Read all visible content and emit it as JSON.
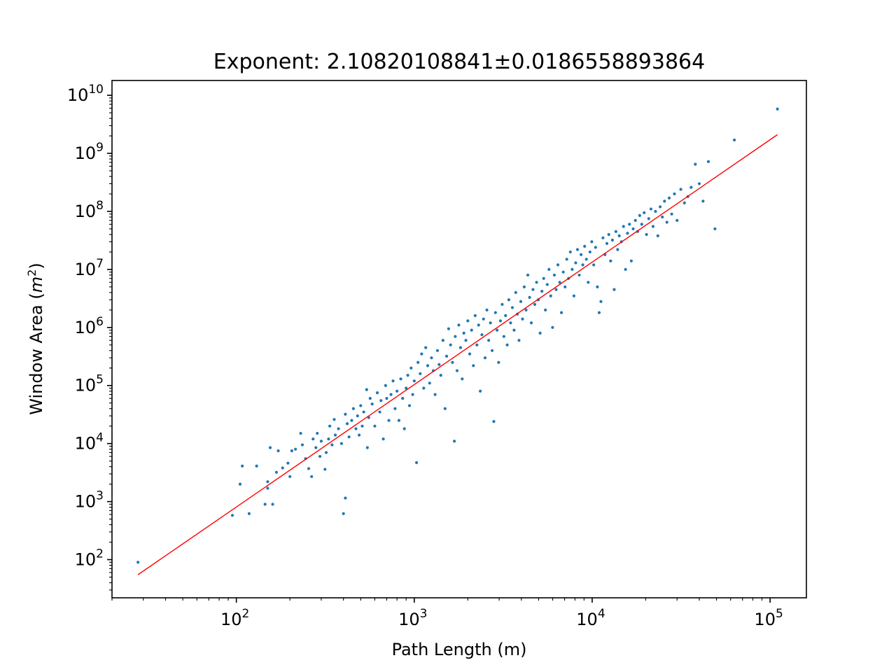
{
  "chart_data": {
    "type": "scatter",
    "title": "Exponent: 2.10820108841±0.0186558893864",
    "xlabel": "Path Length (m)",
    "ylabel_text": "Window Area (",
    "ylabel_math": "m",
    "ylabel_sup": "2",
    "ylabel_close": ")",
    "xscale": "log",
    "yscale": "log",
    "xlim": [
      20,
      160000
    ],
    "ylim": [
      22,
      18000000000
    ],
    "grid": false,
    "legend": "none",
    "xticks": [
      {
        "value": 100,
        "base": "10",
        "exp": "2"
      },
      {
        "value": 1000,
        "base": "10",
        "exp": "3"
      },
      {
        "value": 10000,
        "base": "10",
        "exp": "4"
      },
      {
        "value": 100000,
        "base": "10",
        "exp": "5"
      }
    ],
    "yticks": [
      {
        "value": 100,
        "base": "10",
        "exp": "2"
      },
      {
        "value": 1000,
        "base": "10",
        "exp": "3"
      },
      {
        "value": 10000,
        "base": "10",
        "exp": "4"
      },
      {
        "value": 100000,
        "base": "10",
        "exp": "5"
      },
      {
        "value": 1000000,
        "base": "10",
        "exp": "6"
      },
      {
        "value": 10000000,
        "base": "10",
        "exp": "7"
      },
      {
        "value": 100000000,
        "base": "10",
        "exp": "8"
      },
      {
        "value": 1000000000,
        "base": "10",
        "exp": "9"
      },
      {
        "value": 10000000000,
        "base": "10",
        "exp": "10"
      }
    ],
    "point_color": "#1f77b4",
    "fit_color": "#ff0000",
    "fit_line": {
      "exponent": 2.10820108841,
      "x": [
        28,
        110000
      ],
      "y": [
        55,
        2100000000
      ]
    },
    "points": [
      [
        28,
        90
      ],
      [
        95,
        580
      ],
      [
        105,
        2000
      ],
      [
        108,
        4100
      ],
      [
        118,
        620
      ],
      [
        130,
        4100
      ],
      [
        145,
        900
      ],
      [
        150,
        1700
      ],
      [
        150,
        2200
      ],
      [
        155,
        8500
      ],
      [
        160,
        900
      ],
      [
        168,
        3200
      ],
      [
        172,
        7500
      ],
      [
        182,
        3800
      ],
      [
        195,
        4600
      ],
      [
        200,
        2700
      ],
      [
        205,
        7500
      ],
      [
        215,
        8000
      ],
      [
        230,
        15000
      ],
      [
        235,
        9500
      ],
      [
        245,
        5500
      ],
      [
        255,
        3700
      ],
      [
        265,
        2700
      ],
      [
        270,
        12000
      ],
      [
        280,
        8500
      ],
      [
        285,
        15000
      ],
      [
        295,
        6000
      ],
      [
        300,
        11000
      ],
      [
        315,
        3600
      ],
      [
        320,
        7000
      ],
      [
        330,
        12000
      ],
      [
        335,
        20000
      ],
      [
        345,
        9500
      ],
      [
        355,
        26000
      ],
      [
        360,
        14000
      ],
      [
        375,
        18000
      ],
      [
        390,
        10000
      ],
      [
        400,
        620
      ],
      [
        410,
        1150
      ],
      [
        410,
        32000
      ],
      [
        420,
        22000
      ],
      [
        430,
        13000
      ],
      [
        445,
        25000
      ],
      [
        455,
        40000
      ],
      [
        470,
        18000
      ],
      [
        480,
        30000
      ],
      [
        490,
        14000
      ],
      [
        500,
        45000
      ],
      [
        510,
        20000
      ],
      [
        520,
        35000
      ],
      [
        540,
        85000
      ],
      [
        545,
        8500
      ],
      [
        555,
        28000
      ],
      [
        565,
        60000
      ],
      [
        580,
        48000
      ],
      [
        600,
        20000
      ],
      [
        620,
        75000
      ],
      [
        640,
        35000
      ],
      [
        650,
        55000
      ],
      [
        670,
        12000
      ],
      [
        690,
        100000
      ],
      [
        700,
        60000
      ],
      [
        720,
        25000
      ],
      [
        740,
        70000
      ],
      [
        760,
        120000
      ],
      [
        780,
        40000
      ],
      [
        800,
        80000
      ],
      [
        820,
        25000
      ],
      [
        840,
        130000
      ],
      [
        860,
        60000
      ],
      [
        880,
        18000
      ],
      [
        900,
        90000
      ],
      [
        920,
        150000
      ],
      [
        940,
        45000
      ],
      [
        960,
        200000
      ],
      [
        980,
        70000
      ],
      [
        1000,
        120000
      ],
      [
        1030,
        4700
      ],
      [
        1050,
        250000
      ],
      [
        1080,
        160000
      ],
      [
        1100,
        350000
      ],
      [
        1130,
        90000
      ],
      [
        1160,
        450000
      ],
      [
        1190,
        220000
      ],
      [
        1220,
        110000
      ],
      [
        1250,
        300000
      ],
      [
        1280,
        180000
      ],
      [
        1310,
        70000
      ],
      [
        1350,
        400000
      ],
      [
        1380,
        230000
      ],
      [
        1410,
        150000
      ],
      [
        1450,
        600000
      ],
      [
        1490,
        40000
      ],
      [
        1520,
        320000
      ],
      [
        1560,
        950000
      ],
      [
        1600,
        500000
      ],
      [
        1640,
        250000
      ],
      [
        1680,
        11000
      ],
      [
        1700,
        700000
      ],
      [
        1740,
        180000
      ],
      [
        1780,
        1100000
      ],
      [
        1820,
        450000
      ],
      [
        1860,
        130000
      ],
      [
        1900,
        800000
      ],
      [
        1950,
        600000
      ],
      [
        2000,
        1300000
      ],
      [
        2050,
        350000
      ],
      [
        2100,
        900000
      ],
      [
        2150,
        220000
      ],
      [
        2200,
        1600000
      ],
      [
        2250,
        500000
      ],
      [
        2300,
        1100000
      ],
      [
        2350,
        80000
      ],
      [
        2400,
        750000
      ],
      [
        2450,
        1400000
      ],
      [
        2500,
        300000
      ],
      [
        2560,
        2000000
      ],
      [
        2620,
        600000
      ],
      [
        2680,
        1200000
      ],
      [
        2740,
        400000
      ],
      [
        2800,
        24000
      ],
      [
        2860,
        1800000
      ],
      [
        2920,
        900000
      ],
      [
        2980,
        250000
      ],
      [
        3050,
        1300000
      ],
      [
        3120,
        2500000
      ],
      [
        3190,
        700000
      ],
      [
        3260,
        1600000
      ],
      [
        3330,
        500000
      ],
      [
        3400,
        3000000
      ],
      [
        3480,
        1200000
      ],
      [
        3560,
        2200000
      ],
      [
        3640,
        900000
      ],
      [
        3720,
        4000000
      ],
      [
        3800,
        1700000
      ],
      [
        3880,
        600000
      ],
      [
        3970,
        2800000
      ],
      [
        4060,
        1400000
      ],
      [
        4150,
        5000000
      ],
      [
        4250,
        2000000
      ],
      [
        4350,
        8000000
      ],
      [
        4450,
        3300000
      ],
      [
        4550,
        1200000
      ],
      [
        4650,
        4500000
      ],
      [
        4760,
        2500000
      ],
      [
        4870,
        6000000
      ],
      [
        4980,
        3000000
      ],
      [
        5100,
        800000
      ],
      [
        5220,
        4200000
      ],
      [
        5340,
        7000000
      ],
      [
        5460,
        2000000
      ],
      [
        5590,
        5500000
      ],
      [
        5720,
        10000000
      ],
      [
        5850,
        3500000
      ],
      [
        5990,
        1000000
      ],
      [
        6130,
        8000000
      ],
      [
        6270,
        4500000
      ],
      [
        6420,
        12000000
      ],
      [
        6570,
        6000000
      ],
      [
        6720,
        1800000
      ],
      [
        6880,
        9000000
      ],
      [
        7040,
        5000000
      ],
      [
        7200,
        15000000
      ],
      [
        7370,
        7000000
      ],
      [
        7540,
        20000000
      ],
      [
        7720,
        10000000
      ],
      [
        7900,
        3500000
      ],
      [
        8080,
        13000000
      ],
      [
        8270,
        22000000
      ],
      [
        8460,
        8000000
      ],
      [
        8660,
        18000000
      ],
      [
        8860,
        12000000
      ],
      [
        9070,
        25000000
      ],
      [
        9280,
        15000000
      ],
      [
        9500,
        6000000
      ],
      [
        9720,
        20000000
      ],
      [
        9950,
        30000000
      ],
      [
        10200,
        12000000
      ],
      [
        10450,
        24000000
      ],
      [
        10700,
        5000000
      ],
      [
        10950,
        1800000
      ],
      [
        11200,
        2800000
      ],
      [
        11500,
        35000000
      ],
      [
        11800,
        18000000
      ],
      [
        12100,
        28000000
      ],
      [
        12400,
        40000000
      ],
      [
        12700,
        14000000
      ],
      [
        13000,
        32000000
      ],
      [
        13300,
        4500000
      ],
      [
        13600,
        45000000
      ],
      [
        13900,
        22000000
      ],
      [
        14200,
        38000000
      ],
      [
        14600,
        30000000
      ],
      [
        15000,
        55000000
      ],
      [
        15400,
        10000000
      ],
      [
        15800,
        42000000
      ],
      [
        16200,
        60000000
      ],
      [
        16600,
        14000000
      ],
      [
        17000,
        50000000
      ],
      [
        17500,
        70000000
      ],
      [
        18000,
        45000000
      ],
      [
        18500,
        85000000
      ],
      [
        19000,
        60000000
      ],
      [
        19600,
        95000000
      ],
      [
        20200,
        40000000
      ],
      [
        20800,
        75000000
      ],
      [
        21400,
        110000000
      ],
      [
        22000,
        55000000
      ],
      [
        22700,
        100000000
      ],
      [
        23400,
        38000000
      ],
      [
        24100,
        120000000
      ],
      [
        24800,
        80000000
      ],
      [
        25500,
        150000000
      ],
      [
        26300,
        65000000
      ],
      [
        27100,
        170000000
      ],
      [
        28000,
        90000000
      ],
      [
        29000,
        200000000
      ],
      [
        30000,
        70000000
      ],
      [
        31500,
        240000000
      ],
      [
        33000,
        140000000
      ],
      [
        34500,
        180000000
      ],
      [
        36000,
        260000000
      ],
      [
        38000,
        650000000
      ],
      [
        40000,
        300000000
      ],
      [
        42000,
        150000000
      ],
      [
        45000,
        720000000
      ],
      [
        49000,
        50000000
      ],
      [
        63000,
        1700000000
      ],
      [
        110000,
        5800000000
      ]
    ]
  }
}
